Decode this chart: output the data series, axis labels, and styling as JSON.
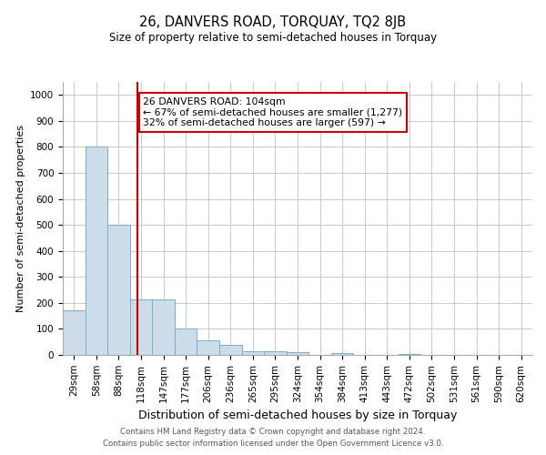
{
  "title": "26, DANVERS ROAD, TORQUAY, TQ2 8JB",
  "subtitle": "Size of property relative to semi-detached houses in Torquay",
  "xlabel": "Distribution of semi-detached houses by size in Torquay",
  "ylabel": "Number of semi-detached properties",
  "categories": [
    "29sqm",
    "58sqm",
    "88sqm",
    "118sqm",
    "147sqm",
    "177sqm",
    "206sqm",
    "236sqm",
    "265sqm",
    "295sqm",
    "324sqm",
    "354sqm",
    "384sqm",
    "413sqm",
    "443sqm",
    "472sqm",
    "502sqm",
    "531sqm",
    "561sqm",
    "590sqm",
    "620sqm"
  ],
  "values": [
    170,
    800,
    500,
    215,
    215,
    100,
    55,
    37,
    13,
    13,
    10,
    0,
    7,
    0,
    0,
    5,
    0,
    0,
    0,
    0,
    0
  ],
  "bar_color": "#ccdce8",
  "bar_edge_color": "#7aaec8",
  "property_line_x": 2.83,
  "property_line_color": "#cc0000",
  "annotation_text": "26 DANVERS ROAD: 104sqm\n← 67% of semi-detached houses are smaller (1,277)\n32% of semi-detached houses are larger (597) →",
  "annotation_box_color": "#ffffff",
  "annotation_box_edge_color": "#cc0000",
  "ylim": [
    0,
    1050
  ],
  "yticks": [
    0,
    100,
    200,
    300,
    400,
    500,
    600,
    700,
    800,
    900,
    1000
  ],
  "footer_line1": "Contains HM Land Registry data © Crown copyright and database right 2024.",
  "footer_line2": "Contains public sector information licensed under the Open Government Licence v3.0.",
  "background_color": "#ffffff",
  "grid_color": "#cccccc",
  "title_fontsize": 10.5,
  "subtitle_fontsize": 8.5,
  "ylabel_fontsize": 8,
  "xlabel_fontsize": 9,
  "tick_fontsize": 7.5,
  "footer_fontsize": 6.2,
  "annot_fontsize": 7.8
}
